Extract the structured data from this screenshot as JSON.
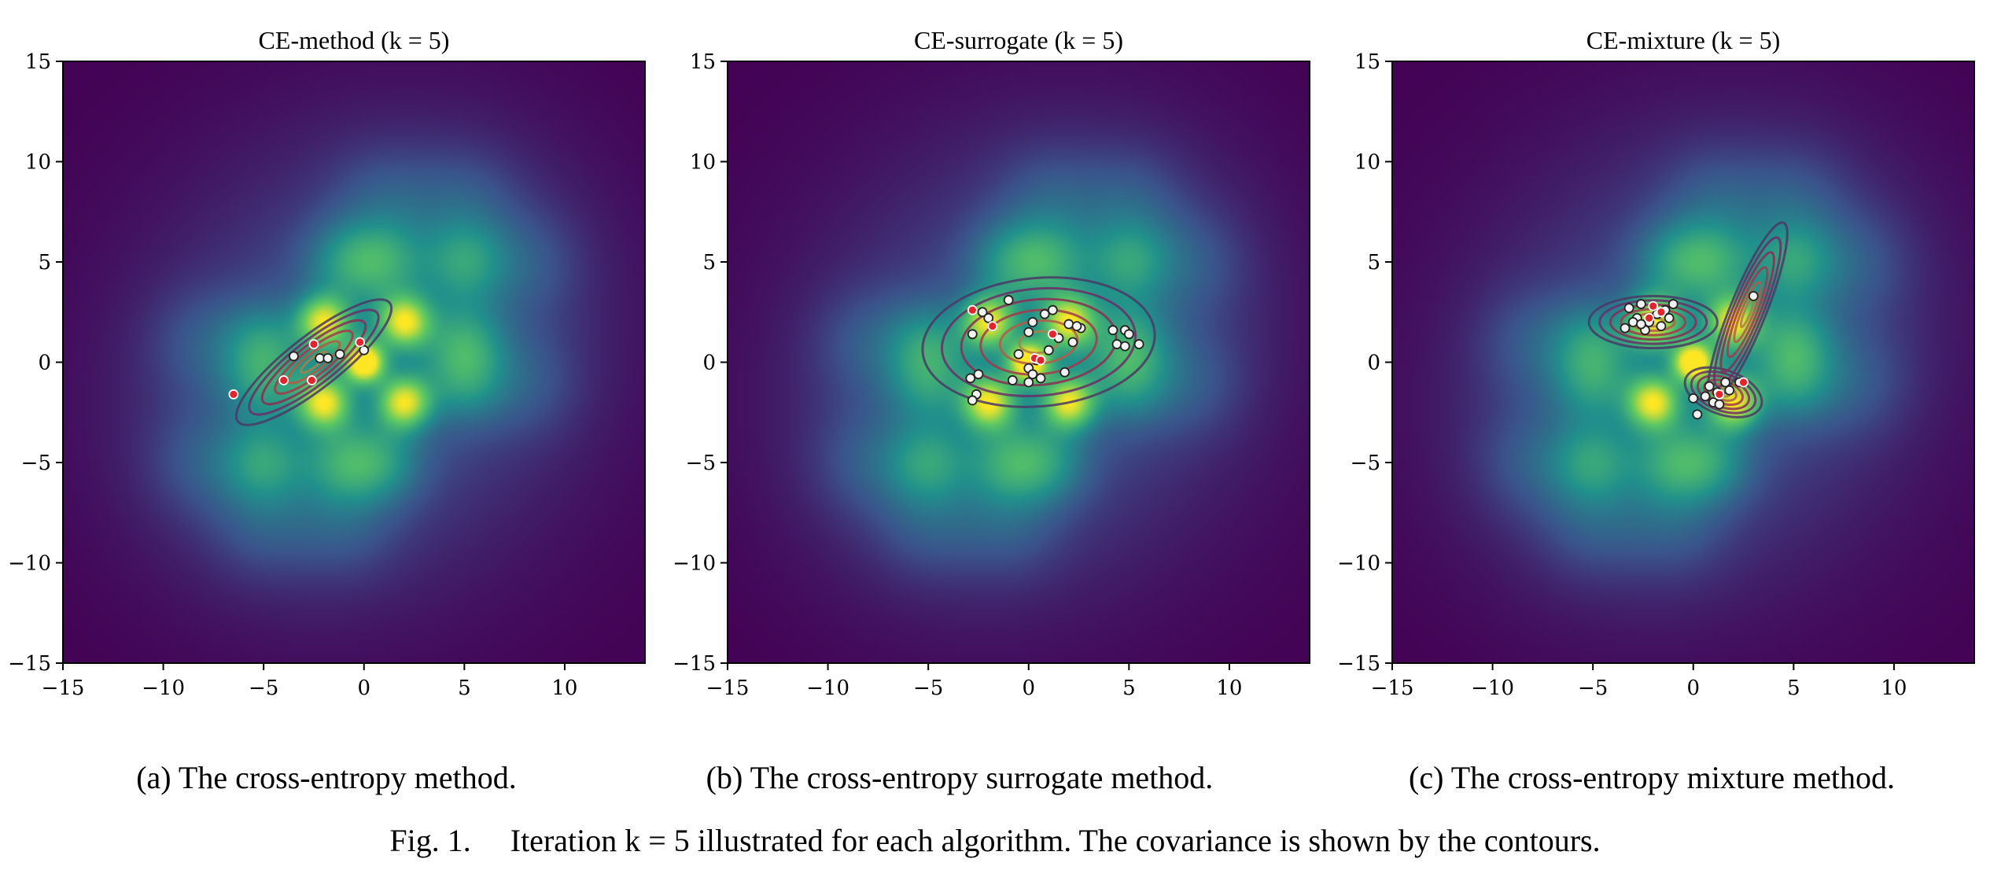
{
  "chart_data": [
    {
      "type": "scatter",
      "title": "CE-method (k = 5)",
      "xlim": [
        -15,
        14
      ],
      "ylim": [
        -15,
        15
      ],
      "xticks": [
        -15,
        -10,
        -5,
        0,
        5,
        10
      ],
      "yticks": [
        -15,
        -10,
        -5,
        0,
        5,
        10,
        15
      ],
      "xtick_labels": [
        "−15",
        "−10",
        "−5",
        "0",
        "5",
        "10"
      ],
      "ytick_labels": [
        "−15",
        "−10",
        "−5",
        "0",
        "5",
        "10",
        "15"
      ],
      "background": "heatmap",
      "contours": [
        {
          "center": [
            -2.5,
            0.0
          ],
          "rx": 4.8,
          "ry": 1.3,
          "angle_deg": 38
        }
      ],
      "points": [
        [
          -2.5,
          0.9
        ],
        [
          -3.5,
          0.3
        ],
        [
          -2.2,
          0.2
        ],
        [
          -1.2,
          0.4
        ],
        [
          0.0,
          0.6
        ],
        [
          -0.2,
          1.0
        ],
        [
          -4.0,
          -0.9
        ],
        [
          -2.6,
          -0.9
        ],
        [
          -6.5,
          -1.6
        ],
        [
          -1.8,
          0.2
        ]
      ],
      "elite_points": [
        [
          -2.5,
          0.9
        ],
        [
          -4.0,
          -0.9
        ],
        [
          -2.6,
          -0.9
        ],
        [
          -6.5,
          -1.6
        ],
        [
          -0.2,
          1.0
        ]
      ]
    },
    {
      "type": "scatter",
      "title": "CE-surrogate (k = 5)",
      "xlim": [
        -15,
        14
      ],
      "ylim": [
        -15,
        15
      ],
      "xticks": [
        -15,
        -10,
        -5,
        0,
        5,
        10
      ],
      "yticks": [
        -15,
        -10,
        -5,
        0,
        5,
        10,
        15
      ],
      "xtick_labels": [
        "−15",
        "−10",
        "−5",
        "0",
        "5",
        "10"
      ],
      "ytick_labels": [
        "−15",
        "−10",
        "−5",
        "0",
        "5",
        "10",
        "15"
      ],
      "background": "heatmap",
      "contours": [
        {
          "center": [
            0.5,
            1.0
          ],
          "rx": 5.8,
          "ry": 3.2,
          "angle_deg": 5
        }
      ],
      "points": [
        [
          -2.8,
          2.6
        ],
        [
          -2.3,
          2.5
        ],
        [
          -2.0,
          2.2
        ],
        [
          -1.8,
          1.8
        ],
        [
          -1.0,
          3.1
        ],
        [
          -2.8,
          1.4
        ],
        [
          0.2,
          2.0
        ],
        [
          0.8,
          2.4
        ],
        [
          1.2,
          2.6
        ],
        [
          2.0,
          1.9
        ],
        [
          2.6,
          1.7
        ],
        [
          1.5,
          1.2
        ],
        [
          2.2,
          1.0
        ],
        [
          0.0,
          1.5
        ],
        [
          -0.5,
          0.4
        ],
        [
          0.4,
          0.1
        ],
        [
          1.0,
          0.6
        ],
        [
          0.0,
          -0.3
        ],
        [
          0.2,
          -0.6
        ],
        [
          -0.8,
          -0.9
        ],
        [
          0.6,
          -0.8
        ],
        [
          0.0,
          -1.0
        ],
        [
          -2.5,
          -0.6
        ],
        [
          -2.9,
          -0.8
        ],
        [
          -2.6,
          -1.6
        ],
        [
          -2.8,
          -1.9
        ],
        [
          4.2,
          1.6
        ],
        [
          4.8,
          1.6
        ],
        [
          5.0,
          1.4
        ],
        [
          4.4,
          0.9
        ],
        [
          5.5,
          0.9
        ],
        [
          4.8,
          0.8
        ],
        [
          1.8,
          -0.5
        ],
        [
          2.4,
          1.8
        ]
      ],
      "elite_points": [
        [
          -2.8,
          2.6
        ],
        [
          -1.8,
          1.8
        ],
        [
          1.2,
          1.4
        ],
        [
          0.3,
          0.2
        ],
        [
          0.6,
          0.1
        ]
      ]
    },
    {
      "type": "scatter",
      "title": "CE-mixture (k = 5)",
      "xlim": [
        -15,
        14
      ],
      "ylim": [
        -15,
        15
      ],
      "xticks": [
        -15,
        -10,
        -5,
        0,
        5,
        10
      ],
      "yticks": [
        -15,
        -10,
        -5,
        0,
        5,
        10,
        15
      ],
      "xtick_labels": [
        "−15",
        "−10",
        "−5",
        "0",
        "5",
        "10"
      ],
      "ytick_labels": [
        "−15",
        "−10",
        "−5",
        "0",
        "5",
        "10",
        "15"
      ],
      "background": "heatmap",
      "contours": [
        {
          "center": [
            -2.0,
            2.0
          ],
          "rx": 3.2,
          "ry": 1.3,
          "angle_deg": 0
        },
        {
          "center": [
            1.5,
            -1.5
          ],
          "rx": 2.0,
          "ry": 1.1,
          "angle_deg": -20
        },
        {
          "center": [
            2.7,
            2.5
          ],
          "rx": 4.8,
          "ry": 0.9,
          "angle_deg": 68
        }
      ],
      "points": [
        [
          -3.2,
          2.7
        ],
        [
          -2.6,
          2.9
        ],
        [
          -2.0,
          2.8
        ],
        [
          -1.4,
          2.6
        ],
        [
          -1.0,
          2.9
        ],
        [
          -2.8,
          2.2
        ],
        [
          -2.2,
          2.0
        ],
        [
          -1.6,
          1.8
        ],
        [
          -3.4,
          1.7
        ],
        [
          -2.4,
          1.6
        ],
        [
          -1.8,
          2.4
        ],
        [
          -3.0,
          2.0
        ],
        [
          -1.2,
          2.2
        ],
        [
          -2.6,
          1.9
        ],
        [
          0.8,
          -1.2
        ],
        [
          1.2,
          -1.5
        ],
        [
          1.6,
          -1.0
        ],
        [
          1.0,
          -2.0
        ],
        [
          0.6,
          -1.7
        ],
        [
          1.3,
          -2.1
        ],
        [
          0.0,
          -1.8
        ],
        [
          0.2,
          -2.6
        ],
        [
          2.3,
          -1.0
        ],
        [
          1.8,
          -1.4
        ],
        [
          3.0,
          3.3
        ]
      ],
      "elite_points": [
        [
          -2.0,
          2.8
        ],
        [
          -1.6,
          2.5
        ],
        [
          -2.2,
          2.2
        ],
        [
          1.3,
          -1.6
        ],
        [
          2.5,
          -1.0
        ]
      ]
    }
  ],
  "heatmap": {
    "bumps": [
      [
        0,
        0,
        1.0,
        0.7
      ],
      [
        2,
        2,
        0.75,
        0.9
      ],
      [
        -2,
        2,
        0.75,
        0.9
      ],
      [
        2,
        -2,
        0.75,
        0.9
      ],
      [
        -2,
        -2,
        0.75,
        0.9
      ],
      [
        1,
        5,
        0.3,
        1.4
      ],
      [
        5,
        5,
        0.3,
        1.4
      ],
      [
        -1,
        5,
        0.25,
        1.4
      ],
      [
        5,
        1,
        0.3,
        1.4
      ],
      [
        5,
        -1,
        0.25,
        1.4
      ],
      [
        -5,
        -5,
        0.3,
        1.4
      ],
      [
        -1,
        -5,
        0.3,
        1.4
      ],
      [
        -5,
        -1,
        0.25,
        1.4
      ],
      [
        -5,
        1,
        0.25,
        1.4
      ],
      [
        1,
        -5,
        0.25,
        1.4
      ],
      [
        8,
        5,
        0.12,
        1.8
      ],
      [
        5,
        8,
        0.12,
        1.8
      ],
      [
        -8,
        -5,
        0.12,
        1.8
      ],
      [
        -5,
        -8,
        0.12,
        1.8
      ],
      [
        8,
        -1,
        0.12,
        1.8
      ],
      [
        -8,
        1,
        0.12,
        1.8
      ],
      [
        1,
        8,
        0.12,
        1.8
      ],
      [
        -1,
        -8,
        0.12,
        1.8
      ],
      [
        0,
        0,
        0.18,
        7.0
      ],
      [
        4,
        4,
        0.1,
        5.0
      ],
      [
        -4,
        -4,
        0.1,
        5.0
      ]
    ]
  },
  "captions": {
    "a": "(a) The cross-entropy method.",
    "b": "(b) The cross-entropy surrogate method.",
    "c": "(c) The cross-entropy mixture method.",
    "figure": "Fig. 1.     Iteration k = 5 illustrated for each algorithm. The covariance is shown by the contours."
  }
}
